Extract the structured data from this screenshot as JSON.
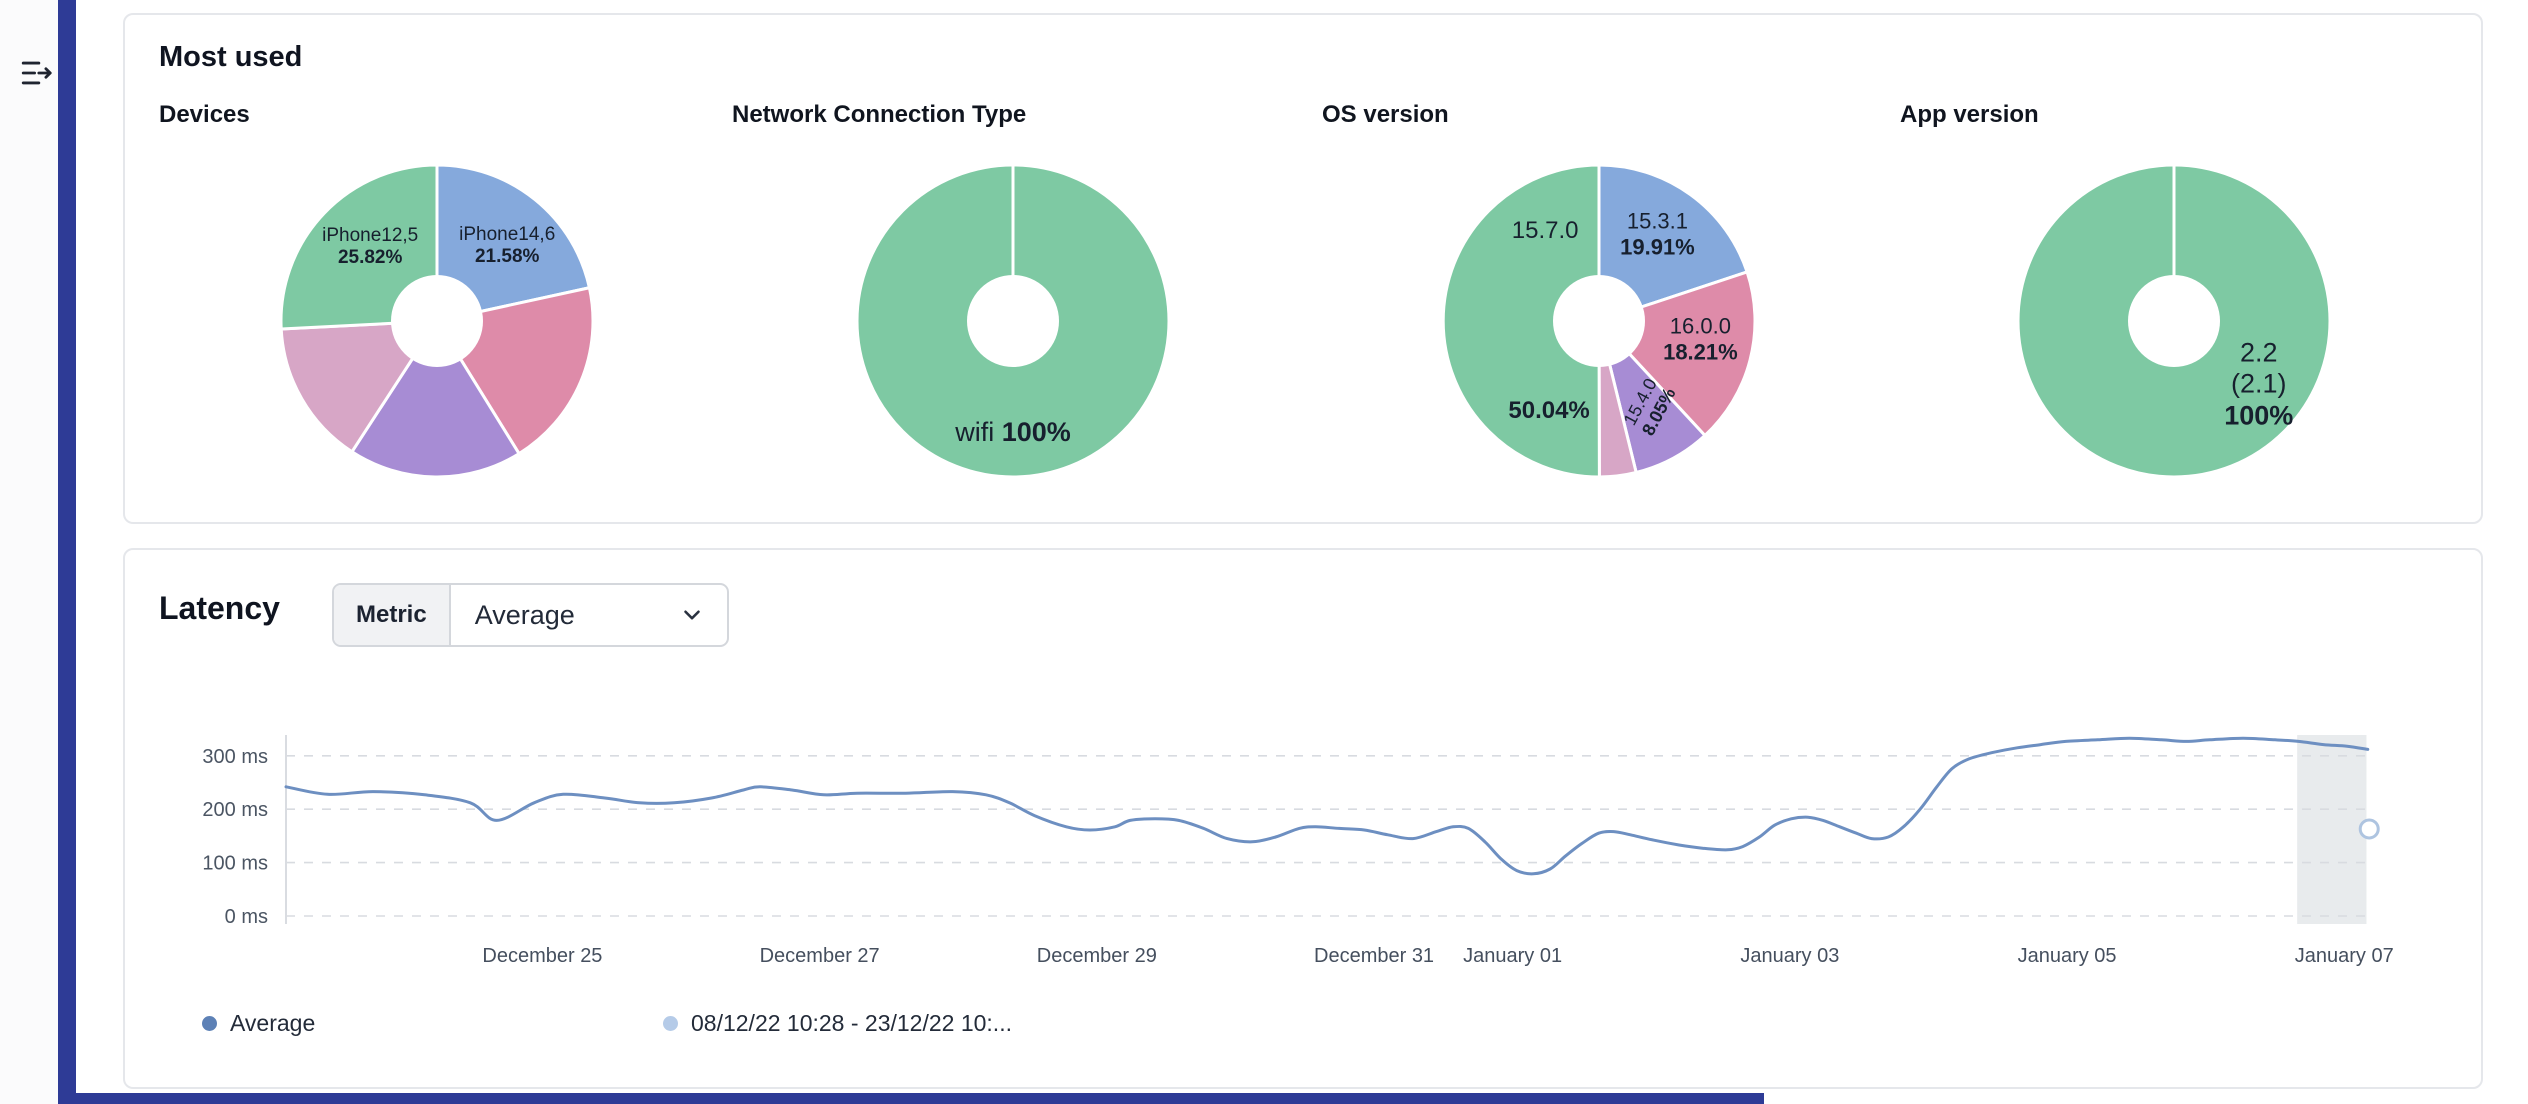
{
  "most_used": {
    "title": "Most used"
  },
  "latency": {
    "title": "Latency",
    "metric_label": "Metric",
    "metric_value": "Average"
  },
  "colors": {
    "accent_bar": "#2e3b96",
    "pie_green": "#7ec9a3",
    "pie_blue": "#85a9dc",
    "pie_pink": "#de8ba9",
    "pie_purple": "#a78cd4",
    "pie_plum": "#d7a6c6",
    "line": "#6d8fc1"
  },
  "chart_data": [
    {
      "type": "pie",
      "title": "Devices",
      "slices": [
        {
          "label": "iPhone14,6",
          "value": 21.58,
          "color": "#85a9dc"
        },
        {
          "label": "",
          "value": 19.6,
          "color": "#de8ba9"
        },
        {
          "label": "",
          "value": 18.0,
          "color": "#a78cd4"
        },
        {
          "label": "",
          "value": 15.0,
          "color": "#d7a6c6"
        },
        {
          "label": "iPhone12,5",
          "value": 25.82,
          "color": "#7ec9a3"
        }
      ],
      "labels": [
        {
          "lines": [
            [
              {
                "t": "iPhone14,6",
                "b": false
              }
            ],
            [
              {
                "t": "21.58%",
                "b": true
              }
            ]
          ],
          "angle": 43,
          "radius": 0.66,
          "size": 19
        },
        {
          "lines": [
            [
              {
                "t": "iPhone12,5",
                "b": false
              }
            ],
            [
              {
                "t": "25.82%",
                "b": true
              }
            ]
          ],
          "angle": 318,
          "radius": 0.64,
          "size": 19
        }
      ]
    },
    {
      "type": "pie",
      "title": "Network Connection Type",
      "slices": [
        {
          "label": "wifi",
          "value": 100,
          "color": "#7ec9a3"
        }
      ],
      "labels": [
        {
          "lines": [
            [
              {
                "t": "wifi ",
                "b": false
              },
              {
                "t": "100%",
                "b": true
              }
            ]
          ],
          "angle": 180,
          "radius": 0.72,
          "size": 27
        }
      ]
    },
    {
      "type": "pie",
      "title": "OS version",
      "slices": [
        {
          "label": "15.3.1",
          "value": 19.91,
          "color": "#85a9dc"
        },
        {
          "label": "16.0.0",
          "value": 18.21,
          "color": "#de8ba9"
        },
        {
          "label": "15.4.0",
          "value": 8.05,
          "color": "#a78cd4"
        },
        {
          "label": "",
          "value": 3.79,
          "color": "#d7a6c6"
        },
        {
          "label": "15.7.0",
          "value": 50.04,
          "color": "#7ec9a3"
        }
      ],
      "labels": [
        {
          "lines": [
            [
              {
                "t": "15.3.1",
                "b": false
              }
            ],
            [
              {
                "t": "19.91%",
                "b": true
              }
            ]
          ],
          "angle": 34,
          "radius": 0.67,
          "size": 22
        },
        {
          "lines": [
            [
              {
                "t": "16.0.0",
                "b": false
              }
            ],
            [
              {
                "t": "18.21%",
                "b": true
              }
            ]
          ],
          "angle": 100,
          "radius": 0.66,
          "size": 22
        },
        {
          "lines": [
            [
              {
                "t": "15.4.0",
                "b": false
              }
            ],
            [
              {
                "t": "8.05%",
                "b": true
              }
            ]
          ],
          "angle": 149,
          "radius": 0.64,
          "rotate": -62,
          "size": 18
        },
        {
          "lines": [
            [
              {
                "t": "50.04%",
                "b": true
              }
            ]
          ],
          "angle": 209,
          "radius": 0.66,
          "size": 24
        },
        {
          "lines": [
            [
              {
                "t": "15.7.0",
                "b": false
              }
            ]
          ],
          "angle": 329,
          "radius": 0.67,
          "size": 24
        }
      ]
    },
    {
      "type": "pie",
      "title": "App version",
      "slices": [
        {
          "label": "2.2 (2.1)",
          "value": 100,
          "color": "#7ec9a3"
        }
      ],
      "labels": [
        {
          "lines": [
            [
              {
                "t": "2.2",
                "b": false
              }
            ],
            [
              {
                "t": "(2.1)",
                "b": false
              }
            ],
            [
              {
                "t": "100%",
                "b": true
              }
            ]
          ],
          "angle": 127,
          "radius": 0.68,
          "size": 27
        }
      ]
    },
    {
      "type": "line",
      "title": "Latency",
      "metric": "Average",
      "x_range": [
        0,
        15.05
      ],
      "y_range": [
        -15,
        339
      ],
      "grid": "dashed-horizontal",
      "x_ticks": [
        {
          "x": 1.85,
          "label": "December 25"
        },
        {
          "x": 3.85,
          "label": "December 27"
        },
        {
          "x": 5.85,
          "label": "December 29"
        },
        {
          "x": 7.85,
          "label": "December 31"
        },
        {
          "x": 8.85,
          "label": "January 01"
        },
        {
          "x": 10.85,
          "label": "January 03"
        },
        {
          "x": 12.85,
          "label": "January 05"
        },
        {
          "x": 14.85,
          "label": "January 07"
        }
      ],
      "y_ticks": [
        {
          "value": 0,
          "label": "0 ms"
        },
        {
          "value": 100,
          "label": "100 ms"
        },
        {
          "value": 200,
          "label": "200 ms"
        },
        {
          "value": 300,
          "label": "300 ms"
        }
      ],
      "series": [
        {
          "name": "Average",
          "color": "#6d8fc1",
          "points": [
            [
              0,
              242
            ],
            [
              0.3,
              228
            ],
            [
              0.63,
              233
            ],
            [
              1.0,
              227
            ],
            [
              1.33,
              212
            ],
            [
              1.52,
              179
            ],
            [
              1.79,
              212
            ],
            [
              2.0,
              228
            ],
            [
              2.3,
              221
            ],
            [
              2.55,
              212
            ],
            [
              2.8,
              212
            ],
            [
              3.07,
              221
            ],
            [
              3.3,
              236
            ],
            [
              3.42,
              242
            ],
            [
              3.65,
              236
            ],
            [
              3.88,
              227
            ],
            [
              4.12,
              230
            ],
            [
              4.47,
              230
            ],
            [
              4.81,
              233
            ],
            [
              5.05,
              227
            ],
            [
              5.22,
              212
            ],
            [
              5.4,
              188
            ],
            [
              5.63,
              167
            ],
            [
              5.8,
              161
            ],
            [
              5.98,
              167
            ],
            [
              6.09,
              179
            ],
            [
              6.27,
              182
            ],
            [
              6.44,
              179
            ],
            [
              6.62,
              164
            ],
            [
              6.79,
              145
            ],
            [
              6.97,
              139
            ],
            [
              7.14,
              148
            ],
            [
              7.31,
              164
            ],
            [
              7.43,
              167
            ],
            [
              7.6,
              164
            ],
            [
              7.78,
              161
            ],
            [
              7.95,
              152
            ],
            [
              8.13,
              145
            ],
            [
              8.3,
              158
            ],
            [
              8.42,
              167
            ],
            [
              8.53,
              164
            ],
            [
              8.65,
              139
            ],
            [
              8.77,
              106
            ],
            [
              8.88,
              85
            ],
            [
              9.0,
              79
            ],
            [
              9.12,
              88
            ],
            [
              9.23,
              112
            ],
            [
              9.35,
              136
            ],
            [
              9.47,
              155
            ],
            [
              9.58,
              158
            ],
            [
              9.7,
              152
            ],
            [
              9.87,
              142
            ],
            [
              10.05,
              133
            ],
            [
              10.22,
              127
            ],
            [
              10.4,
              124
            ],
            [
              10.51,
              130
            ],
            [
              10.63,
              148
            ],
            [
              10.74,
              170
            ],
            [
              10.86,
              182
            ],
            [
              10.98,
              185
            ],
            [
              11.09,
              179
            ],
            [
              11.21,
              167
            ],
            [
              11.33,
              155
            ],
            [
              11.44,
              145
            ],
            [
              11.56,
              148
            ],
            [
              11.67,
              167
            ],
            [
              11.79,
              200
            ],
            [
              11.91,
              242
            ],
            [
              12.02,
              276
            ],
            [
              12.14,
              294
            ],
            [
              12.31,
              306
            ],
            [
              12.49,
              315
            ],
            [
              12.66,
              321
            ],
            [
              12.84,
              327
            ],
            [
              13.07,
              330
            ],
            [
              13.3,
              333
            ],
            [
              13.53,
              330
            ],
            [
              13.71,
              327
            ],
            [
              13.88,
              330
            ],
            [
              14.12,
              333
            ],
            [
              14.35,
              330
            ],
            [
              14.52,
              327
            ],
            [
              14.7,
              321
            ],
            [
              14.87,
              318
            ],
            [
              15.02,
              312
            ]
          ]
        }
      ],
      "highlight_band": {
        "from": 14.51,
        "to": 15.01,
        "color": "#e4e7ea"
      },
      "end_marker": {
        "x": 15.03,
        "y": 163
      },
      "legend": [
        {
          "label": "Average",
          "color": "#5d81b6"
        },
        {
          "label": "08/12/22 10:28 - 23/12/22 10:...",
          "color": "#b5cbe8"
        }
      ]
    }
  ]
}
